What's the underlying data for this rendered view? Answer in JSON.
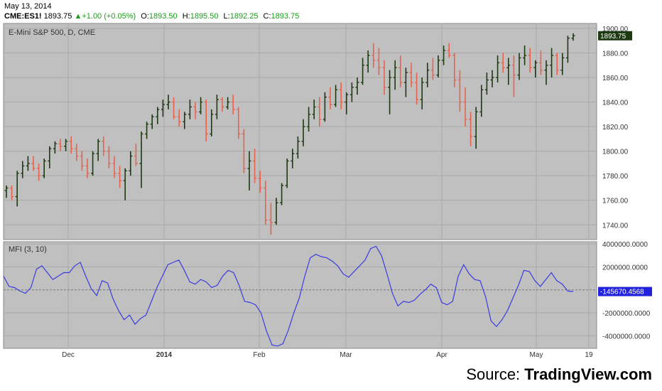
{
  "header": {
    "date": "May 13, 2014",
    "symbol": "CME:ES1!",
    "last": "1893.75",
    "change": "+1.00 (+0.05%)",
    "open_label": "O:",
    "open": "1893.50",
    "high_label": "H:",
    "high": "1895.50",
    "low_label": "L:",
    "low": "1892.25",
    "close_label": "C:",
    "close": "1893.75"
  },
  "colors": {
    "up": "#1d3a12",
    "down": "#e8634f",
    "mfi_line": "#3b3be0",
    "price_badge": "#1d3a12",
    "mfi_badge": "#2222dd",
    "panel_bg": "#c0c0c0"
  },
  "source": {
    "prefix": "Source: ",
    "brand": "TradingView.com"
  },
  "chart_data": [
    {
      "type": "ohlc",
      "title": "E-Mini S&P 500, D, CME",
      "x_ticks": [
        "Dec",
        "2014",
        "Feb",
        "Mar",
        "Apr",
        "May",
        "19"
      ],
      "y_ticks": [
        1740,
        1760,
        1780,
        1800,
        1820,
        1840,
        1860,
        1880,
        1900
      ],
      "ylim": [
        1728,
        1904
      ],
      "last_value_label": "1893.75",
      "grid": true,
      "bars": [
        [
          1768,
          1772,
          1762,
          1770
        ],
        [
          1770,
          1772,
          1760,
          1763
        ],
        [
          1763,
          1784,
          1755,
          1782
        ],
        [
          1782,
          1792,
          1778,
          1788
        ],
        [
          1788,
          1796,
          1784,
          1790
        ],
        [
          1790,
          1796,
          1784,
          1786
        ],
        [
          1786,
          1790,
          1776,
          1780
        ],
        [
          1780,
          1794,
          1778,
          1792
        ],
        [
          1792,
          1804,
          1786,
          1802
        ],
        [
          1802,
          1808,
          1798,
          1806
        ],
        [
          1806,
          1810,
          1800,
          1804
        ],
        [
          1804,
          1810,
          1800,
          1808
        ],
        [
          1808,
          1812,
          1798,
          1802
        ],
        [
          1802,
          1806,
          1792,
          1796
        ],
        [
          1796,
          1800,
          1784,
          1788
        ],
        [
          1788,
          1794,
          1778,
          1782
        ],
        [
          1782,
          1800,
          1780,
          1798
        ],
        [
          1798,
          1810,
          1792,
          1808
        ],
        [
          1808,
          1812,
          1796,
          1800
        ],
        [
          1800,
          1804,
          1786,
          1790
        ],
        [
          1790,
          1796,
          1778,
          1782
        ],
        [
          1782,
          1788,
          1770,
          1776
        ],
        [
          1776,
          1786,
          1760,
          1784
        ],
        [
          1784,
          1800,
          1780,
          1796
        ],
        [
          1796,
          1806,
          1788,
          1790
        ],
        [
          1790,
          1816,
          1770,
          1814
        ],
        [
          1814,
          1824,
          1810,
          1822
        ],
        [
          1822,
          1830,
          1818,
          1828
        ],
        [
          1828,
          1836,
          1822,
          1834
        ],
        [
          1834,
          1842,
          1828,
          1838
        ],
        [
          1838,
          1846,
          1834,
          1840
        ],
        [
          1840,
          1844,
          1826,
          1828
        ],
        [
          1828,
          1834,
          1820,
          1824
        ],
        [
          1824,
          1832,
          1818,
          1830
        ],
        [
          1830,
          1842,
          1826,
          1836
        ],
        [
          1836,
          1840,
          1826,
          1832
        ],
        [
          1832,
          1844,
          1830,
          1840
        ],
        [
          1840,
          1842,
          1808,
          1814
        ],
        [
          1814,
          1834,
          1812,
          1830
        ],
        [
          1830,
          1846,
          1826,
          1842
        ],
        [
          1842,
          1844,
          1832,
          1836
        ],
        [
          1836,
          1844,
          1834,
          1840
        ],
        [
          1840,
          1846,
          1830,
          1834
        ],
        [
          1834,
          1836,
          1810,
          1814
        ],
        [
          1814,
          1818,
          1782,
          1786
        ],
        [
          1786,
          1800,
          1768,
          1792
        ],
        [
          1792,
          1802,
          1774,
          1778
        ],
        [
          1778,
          1784,
          1766,
          1770
        ],
        [
          1770,
          1776,
          1740,
          1744
        ],
        [
          1744,
          1758,
          1732,
          1742
        ],
        [
          1742,
          1762,
          1740,
          1758
        ],
        [
          1758,
          1774,
          1756,
          1772
        ],
        [
          1772,
          1794,
          1770,
          1792
        ],
        [
          1792,
          1802,
          1786,
          1798
        ],
        [
          1798,
          1812,
          1794,
          1808
        ],
        [
          1808,
          1826,
          1804,
          1820
        ],
        [
          1820,
          1836,
          1816,
          1830
        ],
        [
          1830,
          1842,
          1826,
          1836
        ],
        [
          1836,
          1844,
          1820,
          1826
        ],
        [
          1826,
          1848,
          1824,
          1844
        ],
        [
          1844,
          1852,
          1834,
          1838
        ],
        [
          1838,
          1854,
          1836,
          1850
        ],
        [
          1850,
          1856,
          1834,
          1840
        ],
        [
          1840,
          1848,
          1830,
          1846
        ],
        [
          1846,
          1856,
          1840,
          1852
        ],
        [
          1852,
          1860,
          1846,
          1856
        ],
        [
          1856,
          1876,
          1854,
          1870
        ],
        [
          1870,
          1882,
          1864,
          1878
        ],
        [
          1878,
          1888,
          1868,
          1874
        ],
        [
          1874,
          1884,
          1862,
          1868
        ],
        [
          1868,
          1874,
          1846,
          1852
        ],
        [
          1852,
          1866,
          1830,
          1860
        ],
        [
          1860,
          1874,
          1850,
          1868
        ],
        [
          1868,
          1878,
          1852,
          1856
        ],
        [
          1856,
          1868,
          1844,
          1864
        ],
        [
          1864,
          1872,
          1852,
          1856
        ],
        [
          1856,
          1864,
          1838,
          1842
        ],
        [
          1842,
          1860,
          1834,
          1856
        ],
        [
          1856,
          1872,
          1852,
          1866
        ],
        [
          1866,
          1876,
          1858,
          1862
        ],
        [
          1862,
          1878,
          1860,
          1874
        ],
        [
          1874,
          1886,
          1870,
          1882
        ],
        [
          1882,
          1888,
          1876,
          1878
        ],
        [
          1878,
          1880,
          1852,
          1858
        ],
        [
          1858,
          1866,
          1832,
          1840
        ],
        [
          1840,
          1852,
          1820,
          1826
        ],
        [
          1826,
          1832,
          1804,
          1812
        ],
        [
          1812,
          1836,
          1802,
          1832
        ],
        [
          1832,
          1854,
          1828,
          1850
        ],
        [
          1850,
          1864,
          1846,
          1858
        ],
        [
          1858,
          1866,
          1852,
          1860
        ],
        [
          1860,
          1878,
          1856,
          1872
        ],
        [
          1872,
          1880,
          1864,
          1868
        ],
        [
          1868,
          1876,
          1854,
          1870
        ],
        [
          1870,
          1878,
          1844,
          1862
        ],
        [
          1862,
          1880,
          1858,
          1876
        ],
        [
          1876,
          1886,
          1870,
          1878
        ],
        [
          1878,
          1884,
          1864,
          1868
        ],
        [
          1868,
          1874,
          1860,
          1872
        ],
        [
          1872,
          1882,
          1862,
          1866
        ],
        [
          1866,
          1874,
          1854,
          1870
        ],
        [
          1870,
          1884,
          1860,
          1878
        ],
        [
          1878,
          1880,
          1862,
          1866
        ],
        [
          1866,
          1880,
          1862,
          1876
        ],
        [
          1876,
          1894,
          1872,
          1892
        ],
        [
          1892,
          1896,
          1890,
          1894
        ]
      ]
    },
    {
      "type": "line",
      "title": "MFI (3, 10)",
      "y_ticks": [
        4000000,
        2000000,
        0,
        -2000000,
        -4000000
      ],
      "y_tick_labels": [
        "4000000.0000",
        "2000000.0000",
        "",
        "-2000000.0000",
        "-4000000.0000"
      ],
      "ylim": [
        -5100000,
        4200000
      ],
      "last_value_label": "-145670.4568",
      "series": [
        {
          "values": [
            1200000,
            300000,
            200000,
            -100000,
            -300000,
            200000,
            1800000,
            2100000,
            1500000,
            900000,
            1200000,
            1500000,
            1500000,
            2100000,
            2400000,
            1200000,
            100000,
            -500000,
            800000,
            600000,
            -800000,
            -1800000,
            -2600000,
            -2200000,
            -3000000,
            -2500000,
            -2200000,
            -1000000,
            200000,
            1200000,
            2200000,
            2400000,
            2600000,
            1700000,
            700000,
            500000,
            900000,
            700000,
            200000,
            400000,
            1200000,
            1700000,
            1500000,
            400000,
            -1000000,
            -1100000,
            -1300000,
            -2000000,
            -3600000,
            -4800000,
            -4900000,
            -4700000,
            -3500000,
            -2000000,
            -700000,
            1200000,
            2800000,
            3100000,
            2900000,
            2800000,
            2500000,
            2100000,
            1400000,
            1100000,
            1600000,
            2100000,
            2600000,
            3600000,
            3800000,
            3000000,
            1400000,
            -300000,
            -1400000,
            -1000000,
            -1100000,
            -900000,
            -400000,
            0,
            500000,
            200000,
            -1100000,
            -1300000,
            -1000000,
            1200000,
            2200000,
            1400000,
            900000,
            800000,
            -600000,
            -2700000,
            -3200000,
            -2600000,
            -1800000,
            -700000,
            400000,
            1700000,
            1600000,
            800000,
            300000,
            900000,
            1500000,
            800000,
            500000,
            -100000,
            -145670
          ]
        }
      ]
    }
  ]
}
